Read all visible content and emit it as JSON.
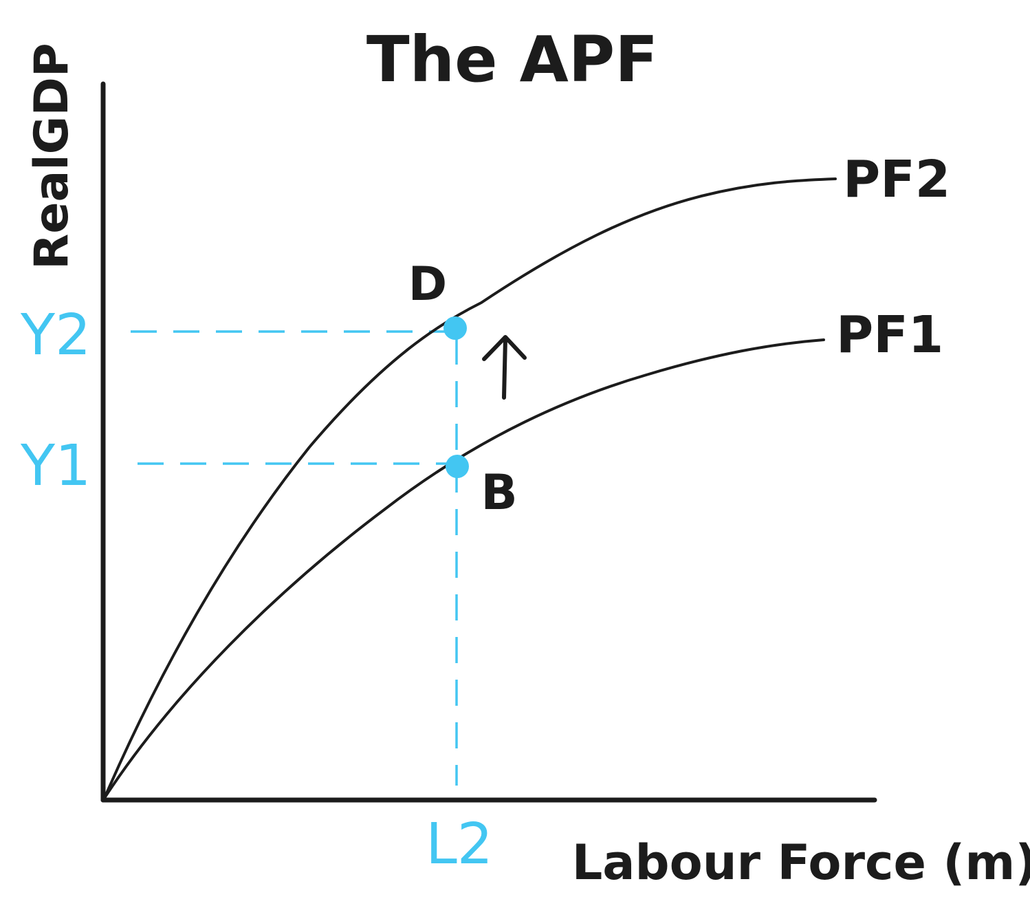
{
  "title": "The APF",
  "axes": {
    "y_label": "RealGDP",
    "x_label": "Labour Force (m)"
  },
  "curves": {
    "pf1": "PF1",
    "pf2": "PF2"
  },
  "points": {
    "d": "D",
    "b": "B"
  },
  "ticks": {
    "y2": "Y2",
    "y1": "Y1",
    "l2": "L2"
  },
  "colors": {
    "ink": "#1c1c1c",
    "accent": "#43c6f2"
  },
  "arrow_icon": "arrow-up-icon"
}
